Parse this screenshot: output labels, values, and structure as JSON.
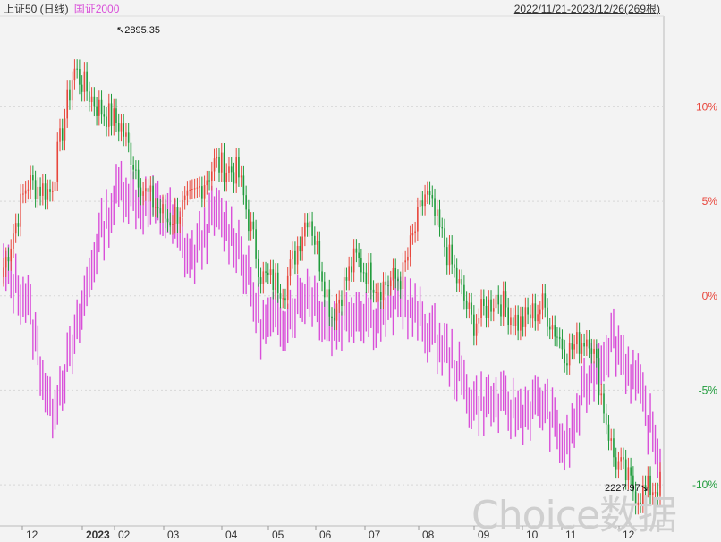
{
  "legend": {
    "series1": "上证50 (日线)",
    "series2": "国证2000"
  },
  "range_label": "2022/11/21-2023/12/26(269根)",
  "watermark": "Choice数据",
  "colors": {
    "up": "#e8463c",
    "down": "#1f9b3b",
    "series2": "#d94fd9",
    "grid": "#d8d8d8",
    "axis_text_pos": "#e8463c",
    "axis_text_zero": "#e8463c",
    "axis_text_neg": "#1f9b3b"
  },
  "chart_data": {
    "type": "candlestick",
    "title": "",
    "x_ticks": [
      "12",
      "2023",
      "02",
      "03",
      "04",
      "05",
      "06",
      "07",
      "08",
      "09",
      "10",
      "11",
      "12"
    ],
    "y_ticks": [
      "10%",
      "5%",
      "0%",
      "-5%",
      "-10%"
    ],
    "y_tick_values": [
      10,
      5,
      0,
      -5,
      -10
    ],
    "ylim": [
      -11.7,
      14.8
    ],
    "annotations": [
      {
        "label": "2895.35",
        "type": "high"
      },
      {
        "label": "2227.97",
        "type": "low"
      }
    ],
    "series": [
      {
        "name": "上证50 (日线)",
        "kind": "candle",
        "monthly_close_pct": [
          1.5,
          6,
          5.5,
          12,
          10,
          9,
          5.5,
          4,
          5,
          7,
          6.5,
          1,
          0.5,
          4.5,
          -1,
          2,
          0.5,
          1,
          5.5,
          2,
          -1.5,
          0,
          -1.5,
          -0.5,
          -3,
          -2,
          -8.5,
          -10.5,
          -10
        ]
      },
      {
        "name": "国证2000",
        "kind": "bar",
        "monthly_close_pct": [
          1.5,
          0,
          -6,
          -2.5,
          3,
          6,
          5,
          4.5,
          2,
          4.5,
          3,
          -1.5,
          -1,
          0.5,
          -1.5,
          -0.5,
          -1,
          0,
          -1.5,
          -3,
          -5.5,
          -5.5,
          -6,
          -5.5,
          -8,
          -4,
          -2,
          -4.5,
          -8.5
        ]
      }
    ]
  }
}
